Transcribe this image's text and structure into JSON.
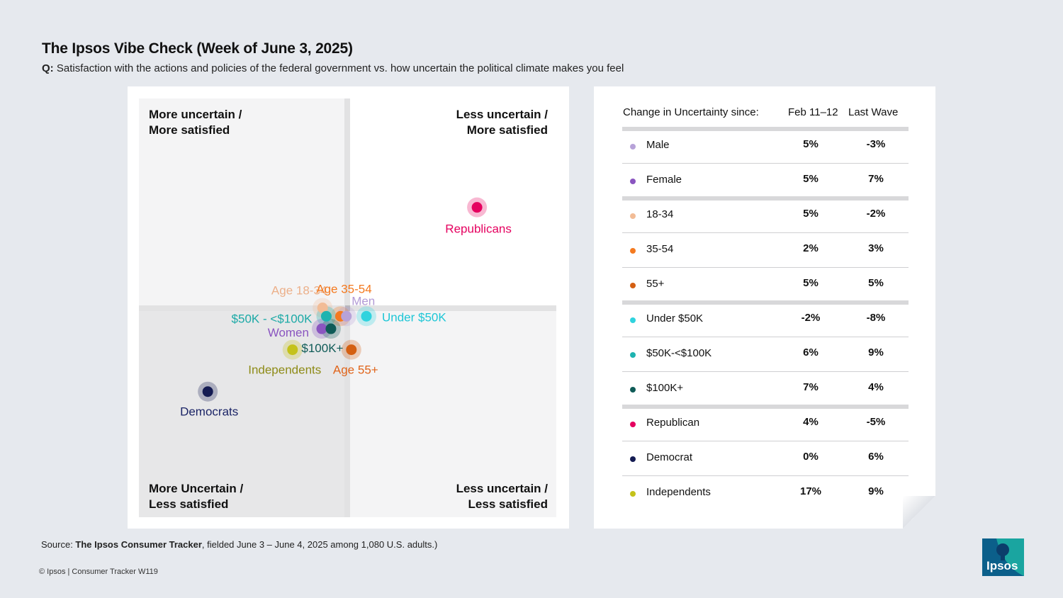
{
  "title": "The Ipsos Vibe Check (Week of June 3, 2025)",
  "question_prefix": "Q:",
  "question": "Satisfaction with the actions and policies of the federal government vs. how uncertain the political climate makes you feel",
  "quadrants": {
    "top_left": [
      "More uncertain /",
      "More satisfied"
    ],
    "top_right": [
      "Less uncertain /",
      "More satisfied"
    ],
    "bottom_left": [
      "More Uncertain /",
      "Less satisfied"
    ],
    "bottom_right": [
      "Less uncertain /",
      "Less satisfied"
    ]
  },
  "table": {
    "header": "Change in Uncertainty since:",
    "col1": "Feb 11–12",
    "col2": "Last Wave",
    "rows": [
      {
        "label": "Male",
        "color": "#b7a2d8",
        "feb": "5%",
        "last": "-3%"
      },
      {
        "label": "Female",
        "color": "#8a55c0",
        "feb": "5%",
        "last": "7%"
      },
      {
        "label": "18-34",
        "color": "#f2bc96",
        "feb": "5%",
        "last": "-2%"
      },
      {
        "label": "35-54",
        "color": "#f47a20",
        "feb": "2%",
        "last": "3%"
      },
      {
        "label": "55+",
        "color": "#d45f12",
        "feb": "5%",
        "last": "5%"
      },
      {
        "label": "Under $50K",
        "color": "#2fd3de",
        "feb": "-2%",
        "last": "-8%"
      },
      {
        "label": "$50K-<$100K",
        "color": "#1eb3b0",
        "feb": "6%",
        "last": "9%"
      },
      {
        "label": "$100K+",
        "color": "#0f5b57",
        "feb": "7%",
        "last": "4%"
      },
      {
        "label": "Republican",
        "color": "#e5005f",
        "feb": "4%",
        "last": "-5%"
      },
      {
        "label": "Democrat",
        "color": "#141b52",
        "feb": "0%",
        "last": "6%"
      },
      {
        "label": "Independents",
        "color": "#c4c21a",
        "feb": "17%",
        "last": "9%"
      }
    ]
  },
  "chart_data": {
    "type": "scatter",
    "x_range": [
      0,
      100
    ],
    "y_range": [
      0,
      100
    ],
    "grid": false,
    "points": [
      {
        "name": "Republicans",
        "x": 81,
        "y": 74,
        "color": "#e5005f",
        "label_color": "#e5005f"
      },
      {
        "name": "Age 18-34",
        "x": 44,
        "y": 50,
        "color": "#f2bc96",
        "label_color": "#ecb08a"
      },
      {
        "name": "Age 35-54",
        "x": 48.3,
        "y": 48,
        "color": "#f47a20",
        "label_color": "#f47a20"
      },
      {
        "name": "Men",
        "x": 49.7,
        "y": 48,
        "color": "#b7a2d8",
        "label_color": "#b29ad6"
      },
      {
        "name": "Under $50K",
        "x": 54.5,
        "y": 48,
        "color": "#2fd3de",
        "label_color": "#1dc6d6"
      },
      {
        "name": "$50K - <$100K",
        "x": 44.9,
        "y": 48,
        "color": "#1eb3b0",
        "label_color": "#1ba9a6"
      },
      {
        "name": "Women",
        "x": 43.8,
        "y": 45,
        "color": "#8a55c0",
        "label_color": "#8a55c0"
      },
      {
        "name": "$100K+",
        "x": 46,
        "y": 45,
        "color": "#0f5b57",
        "label_color": "#0f5b57"
      },
      {
        "name": "Independents",
        "x": 36.8,
        "y": 40,
        "color": "#c4c21a",
        "label_color": "#8e8b17"
      },
      {
        "name": "Age 55+",
        "x": 50.9,
        "y": 40,
        "color": "#d45f12",
        "label_color": "#e0641a"
      },
      {
        "name": "Democrats",
        "x": 16.5,
        "y": 30,
        "color": "#141b52",
        "label_color": "#1b2466"
      }
    ]
  },
  "source_prefix": "Source: ",
  "source_bold": "The Ipsos Consumer Tracker",
  "source_rest": ", fielded June 3 – June 4, 2025 among 1,080 U.S. adults.)",
  "copyright": "© Ipsos | Consumer Tracker W119",
  "logo_text": "Ipsos"
}
